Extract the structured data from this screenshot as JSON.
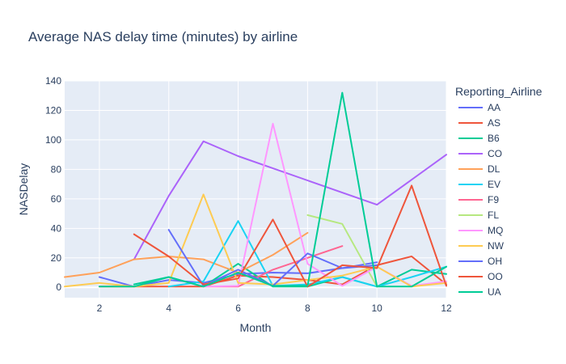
{
  "chart_data": {
    "type": "line",
    "title": "Average NAS delay time (minutes) by airline",
    "xlabel": "Month",
    "ylabel": "NASDelay",
    "xlim": [
      1,
      12
    ],
    "ylim": [
      -7,
      140
    ],
    "x_ticks": [
      2,
      4,
      6,
      8,
      10,
      12
    ],
    "y_ticks": [
      0,
      20,
      40,
      60,
      80,
      100,
      120,
      140
    ],
    "grid": true,
    "legend_title": "Reporting_Airline",
    "legend_position": "right",
    "series": [
      {
        "name": "AA",
        "color": "#636efa",
        "x": [
          2,
          3,
          4,
          5,
          6,
          7,
          8,
          9,
          10
        ],
        "y": [
          7,
          0.5,
          5,
          3,
          9,
          10,
          9.5,
          13,
          17
        ]
      },
      {
        "name": "AS",
        "color": "#ef553b",
        "x": [
          2,
          3,
          5,
          6,
          7,
          8,
          9,
          10,
          11,
          12
        ],
        "y": [
          0.5,
          0.5,
          0.5,
          8,
          7,
          5,
          2,
          15,
          21,
          2
        ]
      },
      {
        "name": "B6",
        "color": "#00cc96",
        "x": [
          3,
          4,
          5,
          6,
          7,
          8,
          9,
          10,
          11,
          12
        ],
        "y": [
          2,
          7,
          0.5,
          16,
          0.5,
          0.5,
          7,
          0.5,
          12,
          9
        ]
      },
      {
        "name": "CO",
        "color": "#ab63fa",
        "x": [
          3,
          4,
          5,
          6,
          10,
          12
        ],
        "y": [
          19,
          62,
          99,
          89,
          56,
          90
        ]
      },
      {
        "name": "DL",
        "color": "#ffa15a",
        "x": [
          1,
          2,
          3,
          4,
          5,
          6,
          7,
          8
        ],
        "y": [
          7,
          10,
          19,
          21,
          19,
          10,
          22,
          37
        ]
      },
      {
        "name": "EV",
        "color": "#19d3f3",
        "x": [
          4,
          5,
          6,
          7,
          8,
          9,
          10,
          11,
          12
        ],
        "y": [
          0.5,
          4,
          45,
          1,
          2,
          7,
          0.5,
          7,
          14
        ]
      },
      {
        "name": "F9",
        "color": "#ff6692",
        "x": [
          5,
          6,
          7,
          8,
          9
        ],
        "y": [
          0.5,
          0.5,
          12,
          20,
          28
        ]
      },
      {
        "name": "FL",
        "color": "#b6e880",
        "x": [
          8,
          9,
          10
        ],
        "y": [
          49,
          43,
          0.5
        ]
      },
      {
        "name": "MQ",
        "color": "#ff97ff",
        "x": [
          5,
          6,
          7,
          8,
          9,
          10,
          11,
          12
        ],
        "y": [
          0.5,
          1,
          111,
          16,
          1,
          14,
          1,
          4
        ]
      },
      {
        "name": "NW",
        "color": "#fecb52",
        "x": [
          1,
          2,
          3,
          4,
          5,
          6,
          7,
          8,
          9,
          10,
          11,
          12
        ],
        "y": [
          0.5,
          3,
          0.5,
          3,
          63,
          3,
          2,
          5,
          8,
          14,
          0.5,
          3
        ]
      },
      {
        "name": "OH",
        "color": "#636efa",
        "x": [
          4,
          5,
          6,
          7,
          8,
          9,
          10
        ],
        "y": [
          39,
          1,
          12,
          1,
          23,
          13,
          15
        ]
      },
      {
        "name": "OO",
        "color": "#ef553b",
        "x": [
          3,
          4,
          5,
          6,
          7,
          8,
          9,
          10,
          11,
          12
        ],
        "y": [
          36,
          21,
          2,
          6,
          46,
          0.5,
          15,
          13,
          69,
          1
        ]
      },
      {
        "name": "UA",
        "color": "#00cc96",
        "x": [
          2,
          3,
          4,
          5,
          6,
          7,
          8,
          9,
          10,
          11,
          12
        ],
        "y": [
          0.5,
          0.5,
          7,
          0.5,
          10,
          1,
          1,
          132,
          0.5,
          0.5,
          14
        ]
      }
    ]
  }
}
